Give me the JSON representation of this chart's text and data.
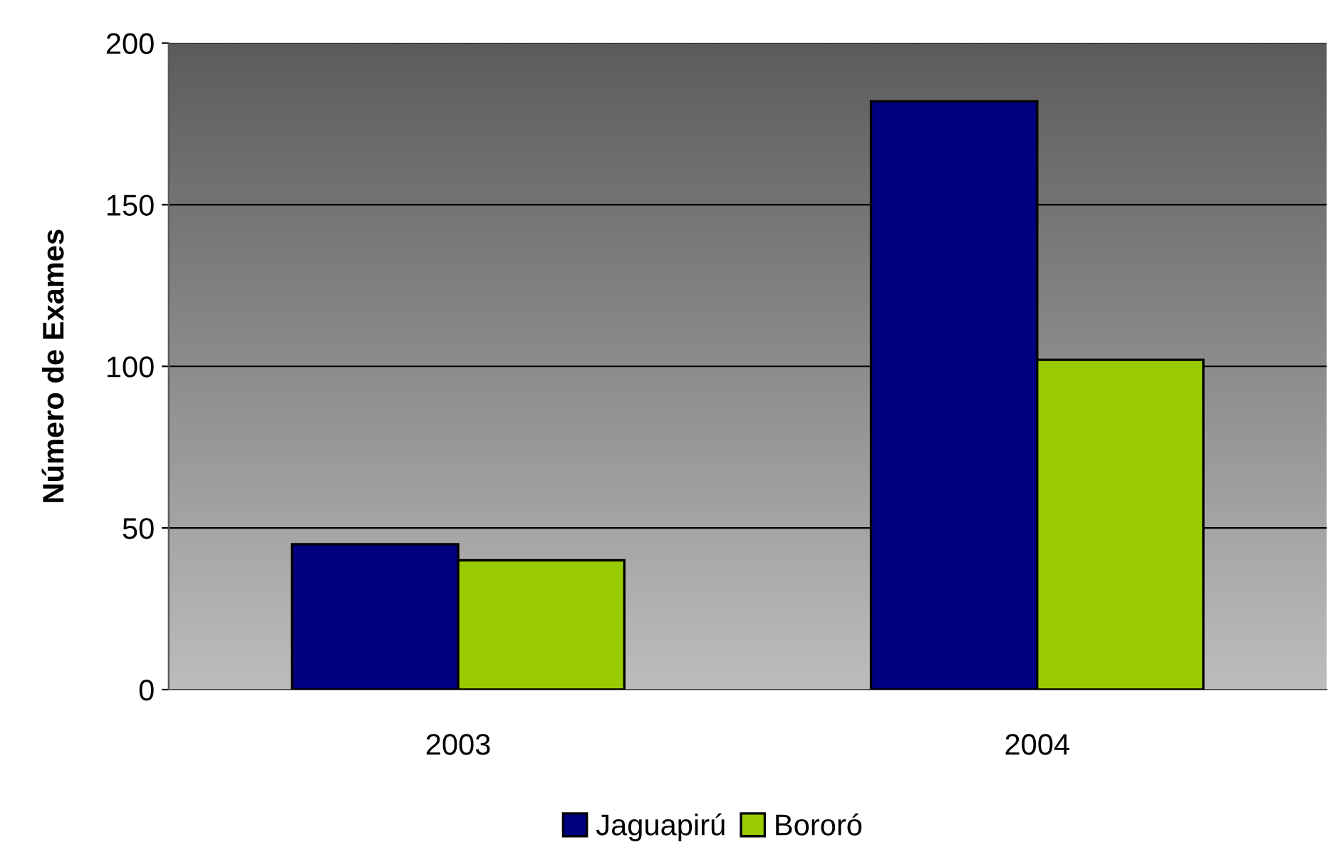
{
  "chart_data": {
    "type": "bar",
    "ylabel": "Número de Exames",
    "categories": [
      "2003",
      "2004"
    ],
    "series": [
      {
        "name": "Jaguapirú",
        "color": "#000080",
        "values": [
          45,
          182
        ]
      },
      {
        "name": "Bororó",
        "color": "#99cc00",
        "values": [
          40,
          102
        ]
      }
    ],
    "ylim": [
      0,
      200
    ],
    "yticks": [
      0,
      50,
      100,
      150,
      200
    ],
    "grid": "y",
    "legend": "bottom"
  }
}
